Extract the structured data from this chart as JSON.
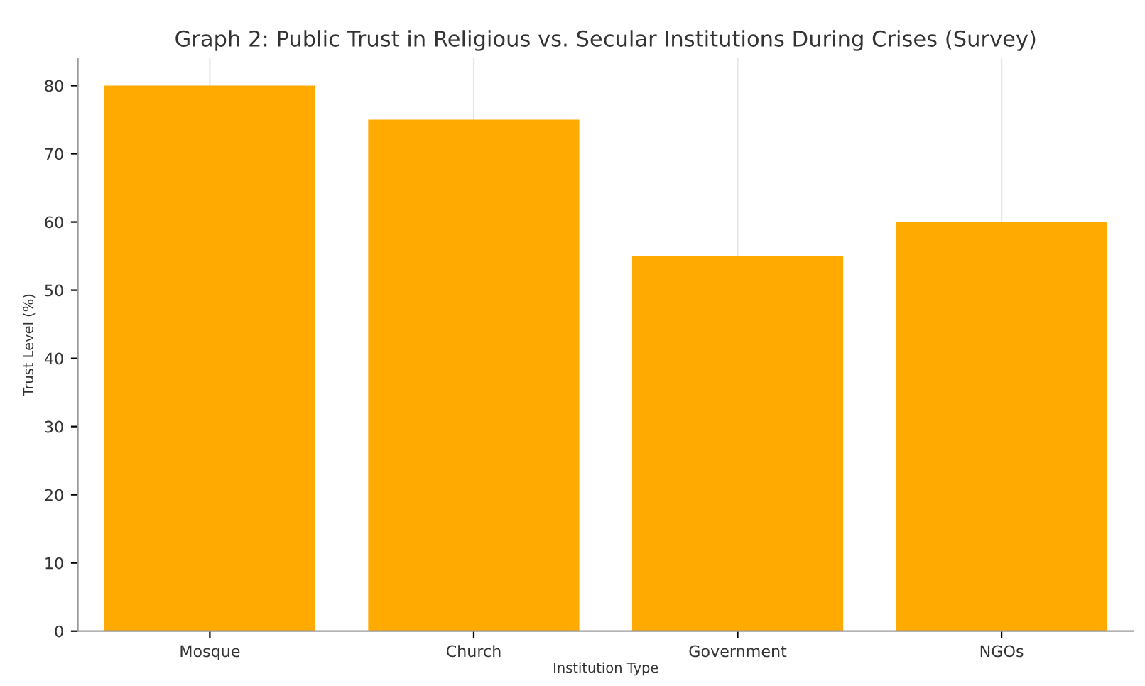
{
  "chart_data": {
    "type": "bar",
    "title": "Graph 2: Public Trust in Religious vs. Secular Institutions During Crises (Survey)",
    "xlabel": "Institution Type",
    "ylabel": "Trust Level (%)",
    "categories": [
      "Mosque",
      "Church",
      "Government",
      "NGOs"
    ],
    "values": [
      80,
      75,
      55,
      60
    ],
    "color": "#ffaa00",
    "ylim": [
      0,
      84
    ],
    "yticks": [
      0,
      10,
      20,
      30,
      40,
      50,
      60,
      70,
      80
    ],
    "grid": "x",
    "legend": false
  }
}
